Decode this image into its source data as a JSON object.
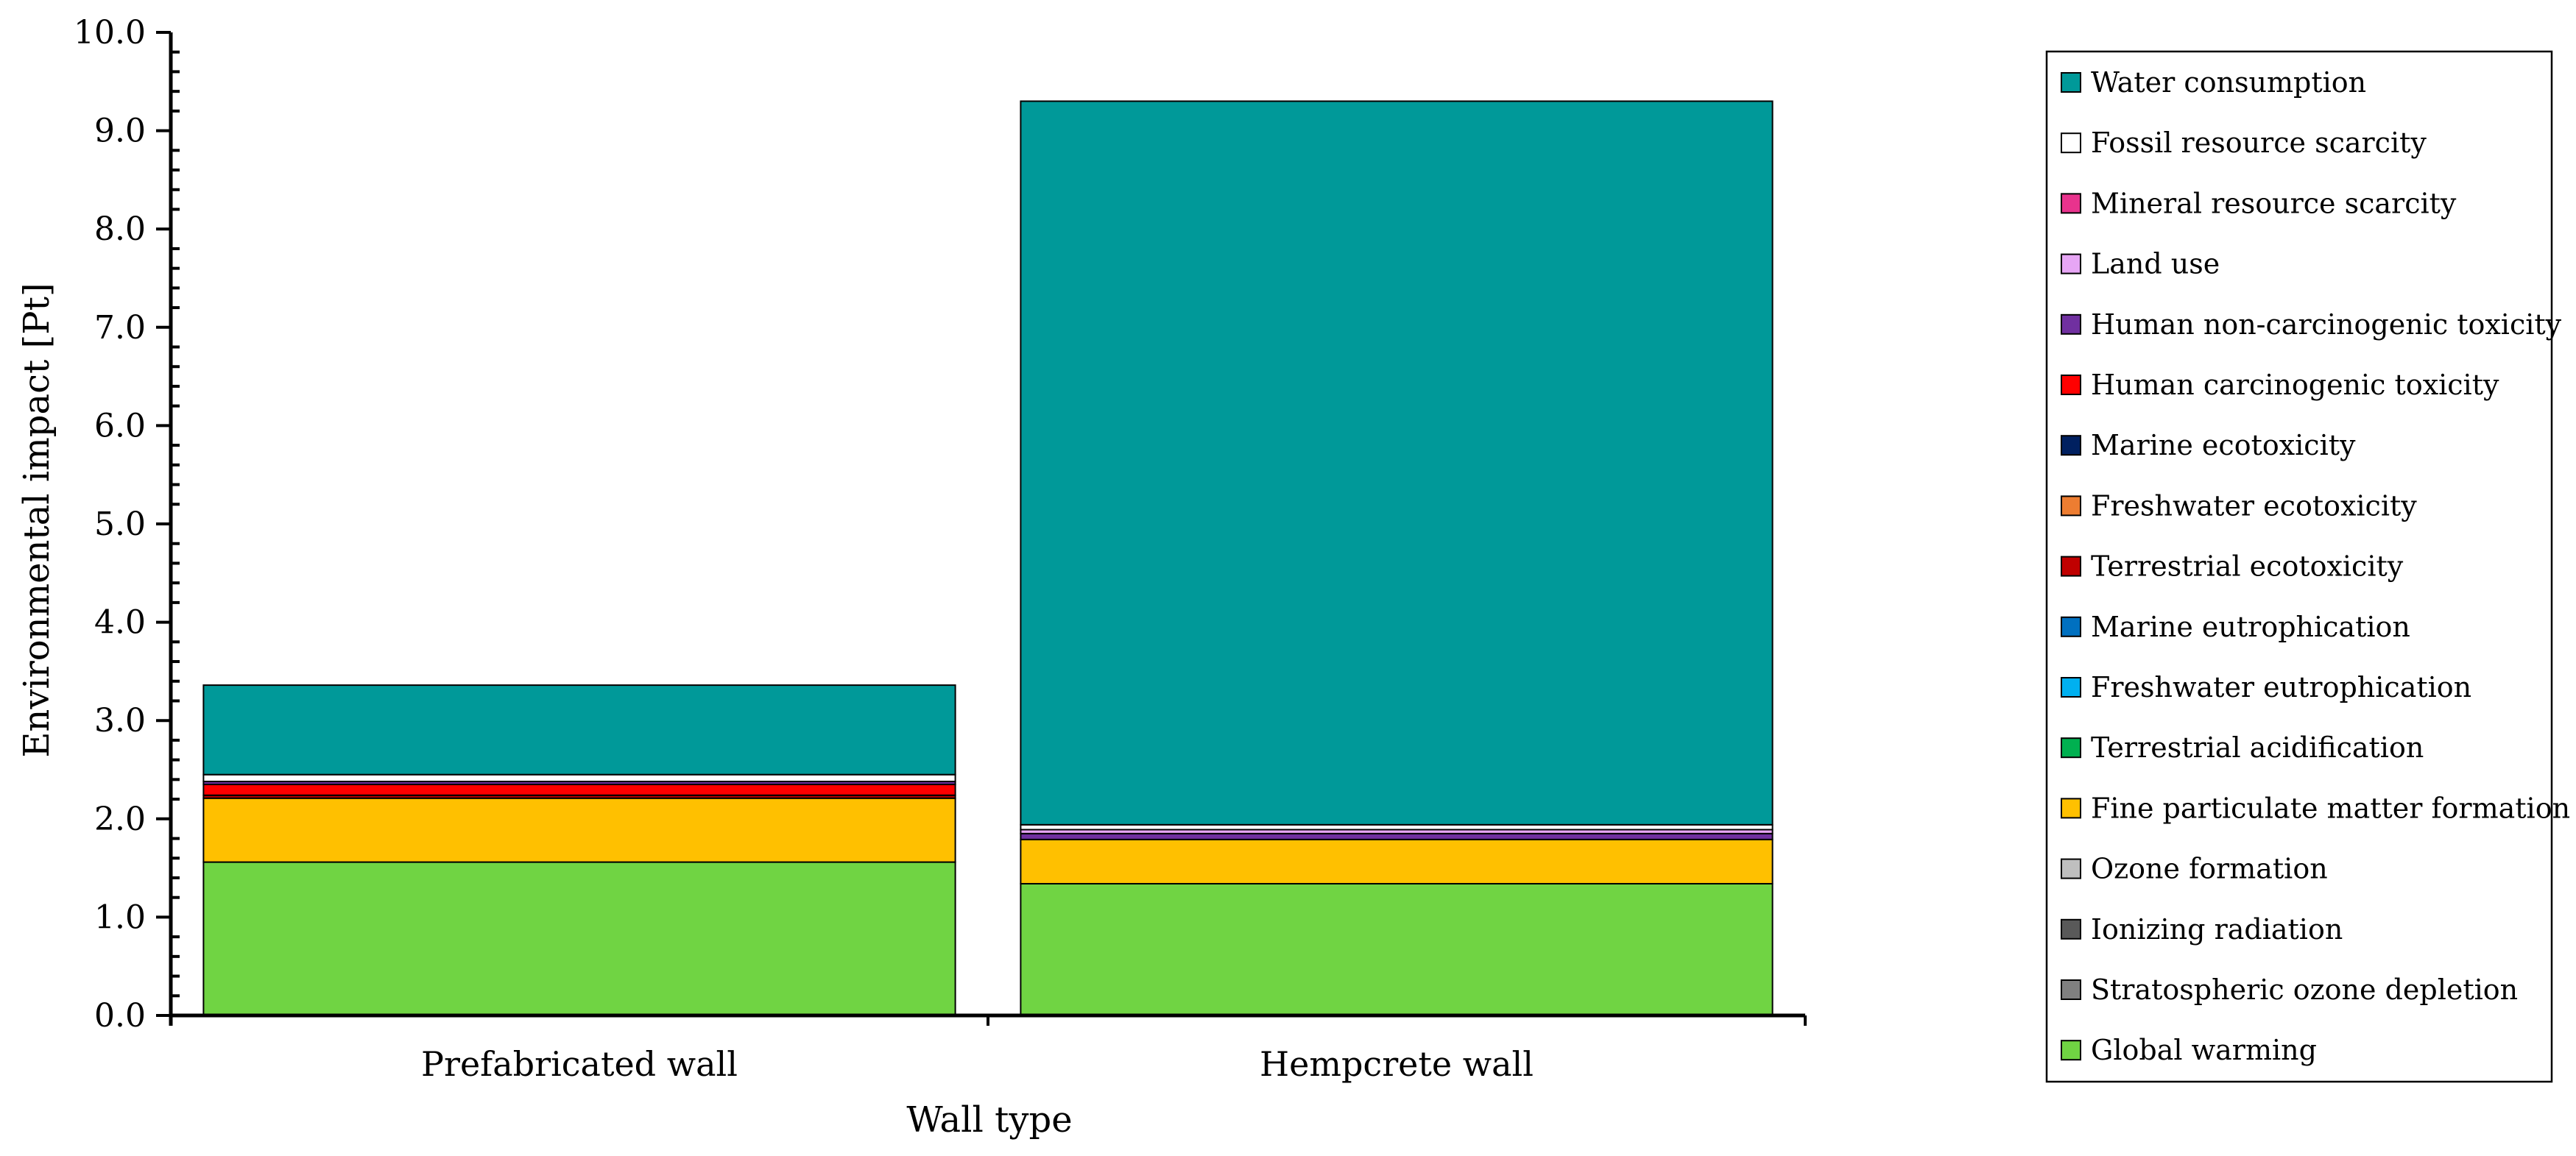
{
  "chart_data": {
    "type": "bar",
    "stacked": true,
    "xlabel": "Wall type",
    "ylabel": "Environmental impact [Pt]",
    "ylim": [
      0,
      10
    ],
    "ytick_step": 1,
    "yticks": [
      "0.0",
      "1.0",
      "2.0",
      "3.0",
      "4.0",
      "5.0",
      "6.0",
      "7.0",
      "8.0",
      "9.0",
      "10.0"
    ],
    "categories": [
      "Prefabricated wall",
      "Hempcrete wall"
    ],
    "grid": false,
    "legend_position": "right",
    "series": [
      {
        "name": "Global warming",
        "color": "#70d443",
        "values": [
          1.56,
          1.34
        ]
      },
      {
        "name": "Stratospheric ozone depletion",
        "color": "#808080",
        "values": [
          0.0,
          0.0
        ]
      },
      {
        "name": "Ionizing radiation",
        "color": "#595959",
        "values": [
          0.0,
          0.0
        ]
      },
      {
        "name": "Ozone formation",
        "color": "#bfbfbf",
        "values": [
          0.0,
          0.0
        ]
      },
      {
        "name": "Fine particulate matter formation",
        "color": "#ffc000",
        "values": [
          0.65,
          0.45
        ]
      },
      {
        "name": "Terrestrial acidification",
        "color": "#00b050",
        "values": [
          0.0,
          0.0
        ]
      },
      {
        "name": "Freshwater eutrophication",
        "color": "#00b0f0",
        "values": [
          0.0,
          0.0
        ]
      },
      {
        "name": "Marine eutrophication",
        "color": "#0070c0",
        "values": [
          0.0,
          0.0
        ]
      },
      {
        "name": "Terrestrial ecotoxicity",
        "color": "#c00000",
        "values": [
          0.03,
          0.0
        ]
      },
      {
        "name": "Freshwater ecotoxicity",
        "color": "#ed7d31",
        "values": [
          0.0,
          0.0
        ]
      },
      {
        "name": "Marine ecotoxicity",
        "color": "#002060",
        "values": [
          0.0,
          0.0
        ]
      },
      {
        "name": "Human carcinogenic toxicity",
        "color": "#ff0000",
        "values": [
          0.11,
          0.0
        ]
      },
      {
        "name": "Human non-carcinogenic toxicity",
        "color": "#7030a0",
        "values": [
          0.03,
          0.06
        ]
      },
      {
        "name": "Land use",
        "color": "#e7a6f5",
        "values": [
          0.0,
          0.04
        ]
      },
      {
        "name": "Mineral resource scarcity",
        "color": "#e8338d",
        "values": [
          0.0,
          0.0
        ]
      },
      {
        "name": "Fossil resource scarcity",
        "color": "#ffffff",
        "values": [
          0.07,
          0.05
        ]
      },
      {
        "name": "Water consumption",
        "color": "#009999",
        "values": [
          0.91,
          7.36
        ]
      }
    ]
  }
}
